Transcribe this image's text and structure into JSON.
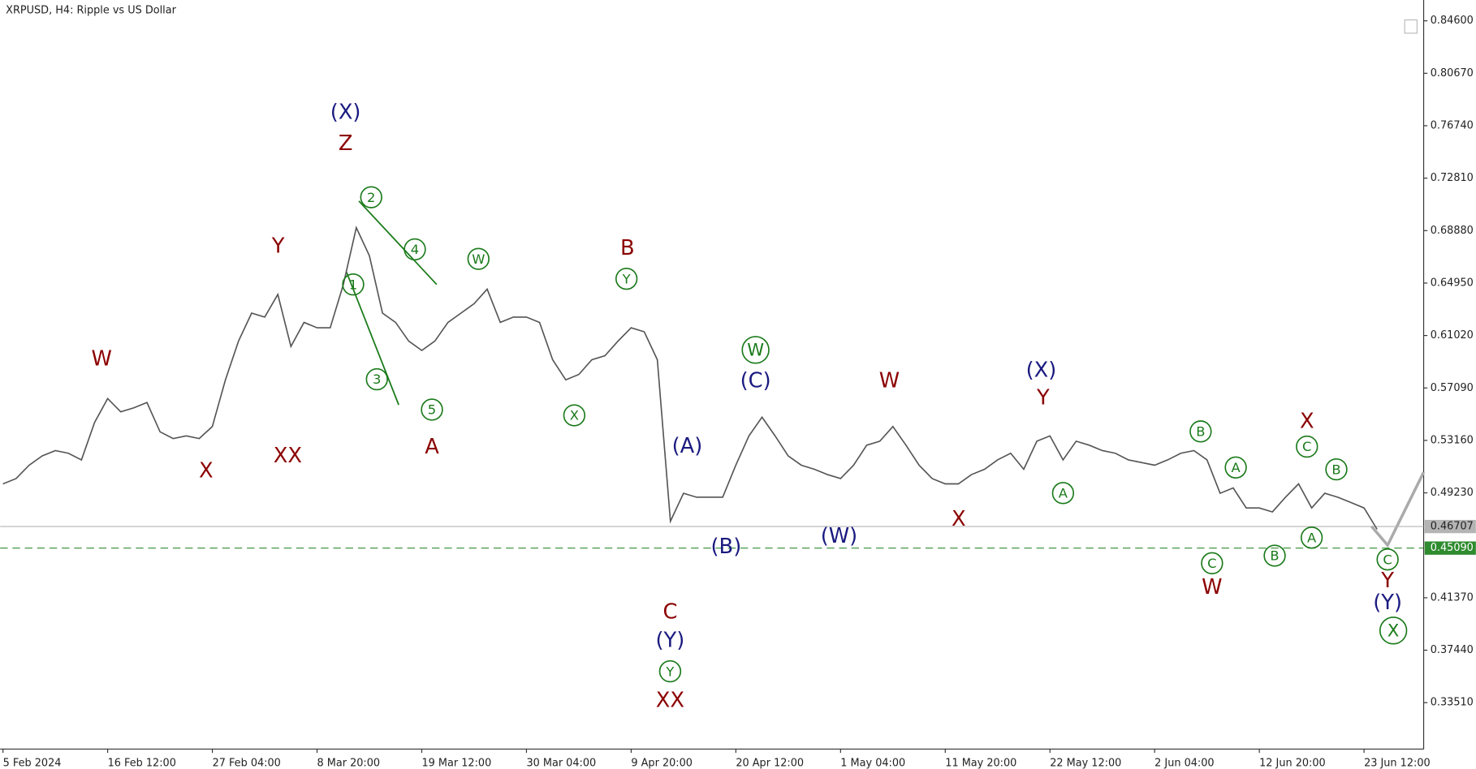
{
  "chart_data": {
    "type": "line",
    "title": "XRPUSD, H4:  Ripple vs US Dollar",
    "color": "#555555",
    "x": [
      "5 Feb 2024",
      null,
      null,
      null,
      null,
      null,
      null,
      null,
      "16 Feb 12:00",
      null,
      null,
      null,
      null,
      null,
      null,
      null,
      "27 Feb 04:00",
      null,
      null,
      null,
      null,
      null,
      null,
      null,
      "8 Mar 20:00",
      null,
      null,
      null,
      null,
      null,
      null,
      null,
      "19 Mar 12:00",
      null,
      null,
      null,
      null,
      null,
      null,
      null,
      "30 Mar 04:00",
      null,
      null,
      null,
      null,
      null,
      null,
      null,
      "9 Apr 20:00",
      null,
      null,
      null,
      null,
      null,
      null,
      null,
      "20 Apr 12:00",
      null,
      null,
      null,
      null,
      null,
      null,
      null,
      "1 May 04:00",
      null,
      null,
      null,
      null,
      null,
      null,
      null,
      "11 May 20:00",
      null,
      null,
      null,
      null,
      null,
      null,
      null,
      "22 May 12:00",
      null,
      null,
      null,
      null,
      null,
      null,
      null,
      "2 Jun 04:00",
      null,
      null,
      null,
      null,
      null,
      null,
      null,
      "12 Jun 20:00",
      null,
      null,
      null,
      null,
      null,
      null,
      null,
      "23 Jun 12:00",
      null
    ],
    "values": [
      0.499,
      0.503,
      0.513,
      0.52,
      0.524,
      0.522,
      0.517,
      0.545,
      0.563,
      0.553,
      0.556,
      0.56,
      0.538,
      0.533,
      0.535,
      0.533,
      0.542,
      0.577,
      0.606,
      0.627,
      0.624,
      0.641,
      0.602,
      0.62,
      0.616,
      0.616,
      0.648,
      0.691,
      0.67,
      0.627,
      0.62,
      0.606,
      0.599,
      0.606,
      0.62,
      0.627,
      0.634,
      0.645,
      0.62,
      0.624,
      0.624,
      0.62,
      0.592,
      0.577,
      0.581,
      0.592,
      0.595,
      0.606,
      0.616,
      0.613,
      0.592,
      0.471,
      0.492,
      0.489,
      0.489,
      0.489,
      0.513,
      0.535,
      0.549,
      0.535,
      0.52,
      0.513,
      0.51,
      0.506,
      0.503,
      0.513,
      0.528,
      0.531,
      0.542,
      0.528,
      0.513,
      0.503,
      0.499,
      0.499,
      0.506,
      0.51,
      0.517,
      0.522,
      0.51,
      0.531,
      0.535,
      0.517,
      0.531,
      0.528,
      0.524,
      0.522,
      0.517,
      0.515,
      0.513,
      0.517,
      0.522,
      0.524,
      0.517,
      0.492,
      0.496,
      0.481,
      0.481,
      0.478,
      0.489,
      0.499,
      0.481,
      0.492,
      0.489,
      0.485,
      0.481,
      0.465
    ],
    "ylim": [
      0.3003,
      0.8616
    ],
    "yticks": [
      {
        "value": 0.846,
        "label": "0.84600"
      },
      {
        "value": 0.8067,
        "label": "0.80670"
      },
      {
        "value": 0.7674,
        "label": "0.76740"
      },
      {
        "value": 0.7281,
        "label": "0.72810"
      },
      {
        "value": 0.6888,
        "label": "0.68880"
      },
      {
        "value": 0.6495,
        "label": "0.64950"
      },
      {
        "value": 0.6102,
        "label": "0.61020"
      },
      {
        "value": 0.5709,
        "label": "0.57090"
      },
      {
        "value": 0.5316,
        "label": "0.53160"
      },
      {
        "value": 0.4923,
        "label": "0.49230"
      },
      {
        "value": 0.4137,
        "label": "0.41370"
      },
      {
        "value": 0.3744,
        "label": "0.37440"
      },
      {
        "value": 0.3351,
        "label": "0.33510"
      }
    ],
    "hlines": [
      {
        "value": 0.46707,
        "label": "0.46707",
        "color": "#b4b4b4",
        "dashed": false
      },
      {
        "value": 0.4509,
        "label": "0.45090",
        "color": "#2e8b2e",
        "dashed": true
      }
    ],
    "annotations": [
      {
        "text": "W",
        "color": "#8b0000"
      },
      {
        "text": "X",
        "color": "#8b0000"
      },
      {
        "text": "Y",
        "color": "#8b0000"
      },
      {
        "text": "XX",
        "color": "#8b0000"
      },
      {
        "text": "(X)",
        "color": "#1a1a80"
      },
      {
        "text": "Z",
        "color": "#8b0000"
      },
      {
        "text": "2",
        "color": "#1a7a1a",
        "circled": true
      },
      {
        "text": "1",
        "color": "#1a7a1a",
        "circled": true
      },
      {
        "text": "4",
        "color": "#1a7a1a",
        "circled": true
      },
      {
        "text": "3",
        "color": "#1a7a1a",
        "circled": true
      },
      {
        "text": "5",
        "color": "#1a7a1a",
        "circled": true
      },
      {
        "text": "A",
        "color": "#8b0000"
      },
      {
        "text": "W",
        "color": "#1a7a1a",
        "circled": true
      },
      {
        "text": "X",
        "color": "#1a7a1a",
        "circled": true
      },
      {
        "text": "B",
        "color": "#8b0000"
      },
      {
        "text": "Y",
        "color": "#1a7a1a",
        "circled": true
      },
      {
        "text": "C",
        "color": "#8b0000"
      },
      {
        "text": "(Y)",
        "color": "#1a1a80"
      },
      {
        "text": "Y",
        "color": "#1a7a1a",
        "circled": true
      },
      {
        "text": "XX",
        "color": "#8b0000"
      },
      {
        "text": "(A)",
        "color": "#1a1a80"
      },
      {
        "text": "(B)",
        "color": "#1a1a80"
      },
      {
        "text": "W",
        "color": "#1a7a1a",
        "circled": true
      },
      {
        "text": "(C)",
        "color": "#1a1a80"
      },
      {
        "text": "(W)",
        "color": "#1a1a80"
      },
      {
        "text": "W",
        "color": "#8b0000"
      },
      {
        "text": "X",
        "color": "#8b0000"
      },
      {
        "text": "(X)",
        "color": "#1a1a80"
      },
      {
        "text": "Y",
        "color": "#8b0000"
      },
      {
        "text": "A",
        "color": "#1a7a1a",
        "circled": true
      },
      {
        "text": "B",
        "color": "#1a7a1a",
        "circled": true
      },
      {
        "text": "C",
        "color": "#1a7a1a",
        "circled": true
      },
      {
        "text": "W",
        "color": "#8b0000"
      },
      {
        "text": "A",
        "color": "#1a7a1a",
        "circled": true
      },
      {
        "text": "B",
        "color": "#1a7a1a",
        "circled": true
      },
      {
        "text": "X",
        "color": "#8b0000"
      },
      {
        "text": "C",
        "color": "#1a7a1a",
        "circled": true
      },
      {
        "text": "A",
        "color": "#1a7a1a",
        "circled": true
      },
      {
        "text": "B",
        "color": "#1a7a1a",
        "circled": true
      },
      {
        "text": "C",
        "color": "#1a7a1a",
        "circled": true
      },
      {
        "text": "Y",
        "color": "#8b0000"
      },
      {
        "text": "(Y)",
        "color": "#1a1a80"
      },
      {
        "text": "X",
        "color": "#1a7a1a",
        "circled": true
      }
    ]
  }
}
